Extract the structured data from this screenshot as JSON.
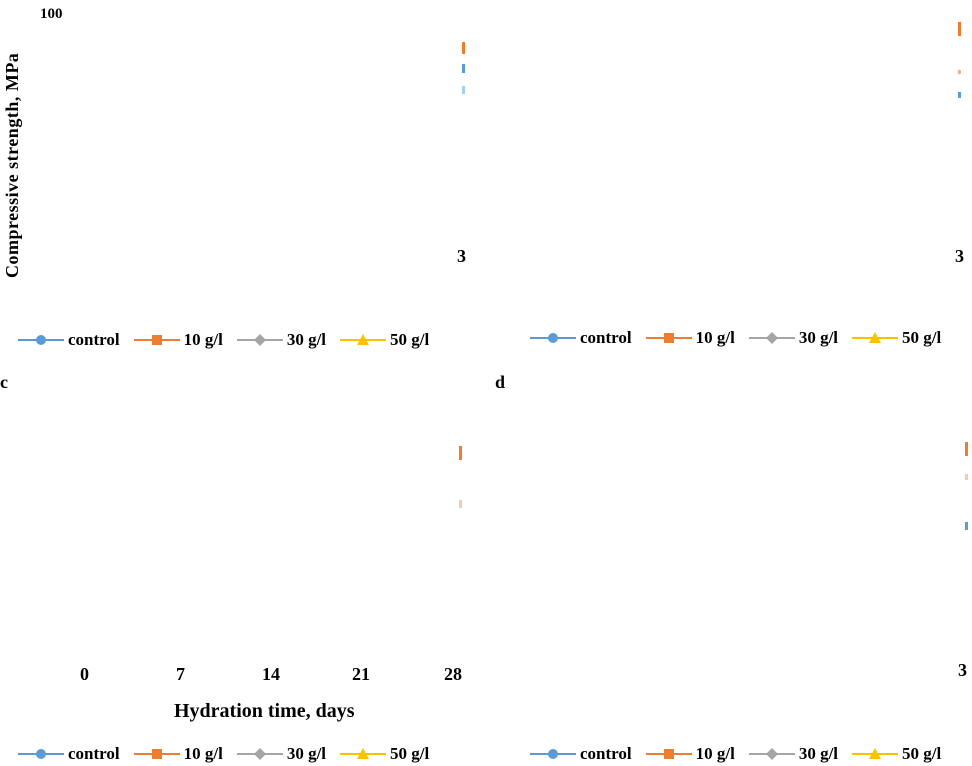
{
  "figure": {
    "y_label": "Compressive strength, MPa",
    "x_label": "Hydration time, days",
    "y_top_tick": "100"
  },
  "panels": [
    {
      "letter": "",
      "x_ticks": [
        "3"
      ]
    },
    {
      "letter": "",
      "x_ticks": [
        "3"
      ]
    },
    {
      "letter": "c",
      "x_ticks": [
        "0",
        "7",
        "14",
        "21",
        "28"
      ]
    },
    {
      "letter": "d",
      "x_ticks": [
        "3"
      ]
    }
  ],
  "legend": [
    {
      "name": "control",
      "color": "#5b9bd5",
      "marker": "circle"
    },
    {
      "name": "10 g/l",
      "color": "#ed7d31",
      "marker": "square"
    },
    {
      "name": "30 g/l",
      "color": "#a5a5a5",
      "marker": "diamond"
    },
    {
      "name": "50 g/l",
      "color": "#ffc000",
      "marker": "triangle"
    }
  ],
  "chart_data": [
    {
      "type": "line",
      "ylabel": "Compressive strength, MPa",
      "x_ticks": [
        "3"
      ],
      "series": [
        {
          "name": "control"
        },
        {
          "name": "10 g/l"
        },
        {
          "name": "30 g/l"
        },
        {
          "name": "50 g/l"
        }
      ]
    },
    {
      "type": "line",
      "x_ticks": [
        "3"
      ],
      "series": [
        {
          "name": "control"
        },
        {
          "name": "10 g/l"
        },
        {
          "name": "30 g/l"
        },
        {
          "name": "50 g/l"
        }
      ]
    },
    {
      "type": "line",
      "xlabel": "Hydration time, days",
      "x_ticks": [
        "0",
        "7",
        "14",
        "21",
        "28"
      ],
      "series": [
        {
          "name": "control"
        },
        {
          "name": "10 g/l"
        },
        {
          "name": "30 g/l"
        },
        {
          "name": "50 g/l"
        }
      ]
    },
    {
      "type": "line",
      "x_ticks": [
        "3"
      ],
      "series": [
        {
          "name": "control"
        },
        {
          "name": "10 g/l"
        },
        {
          "name": "30 g/l"
        },
        {
          "name": "50 g/l"
        }
      ]
    }
  ]
}
